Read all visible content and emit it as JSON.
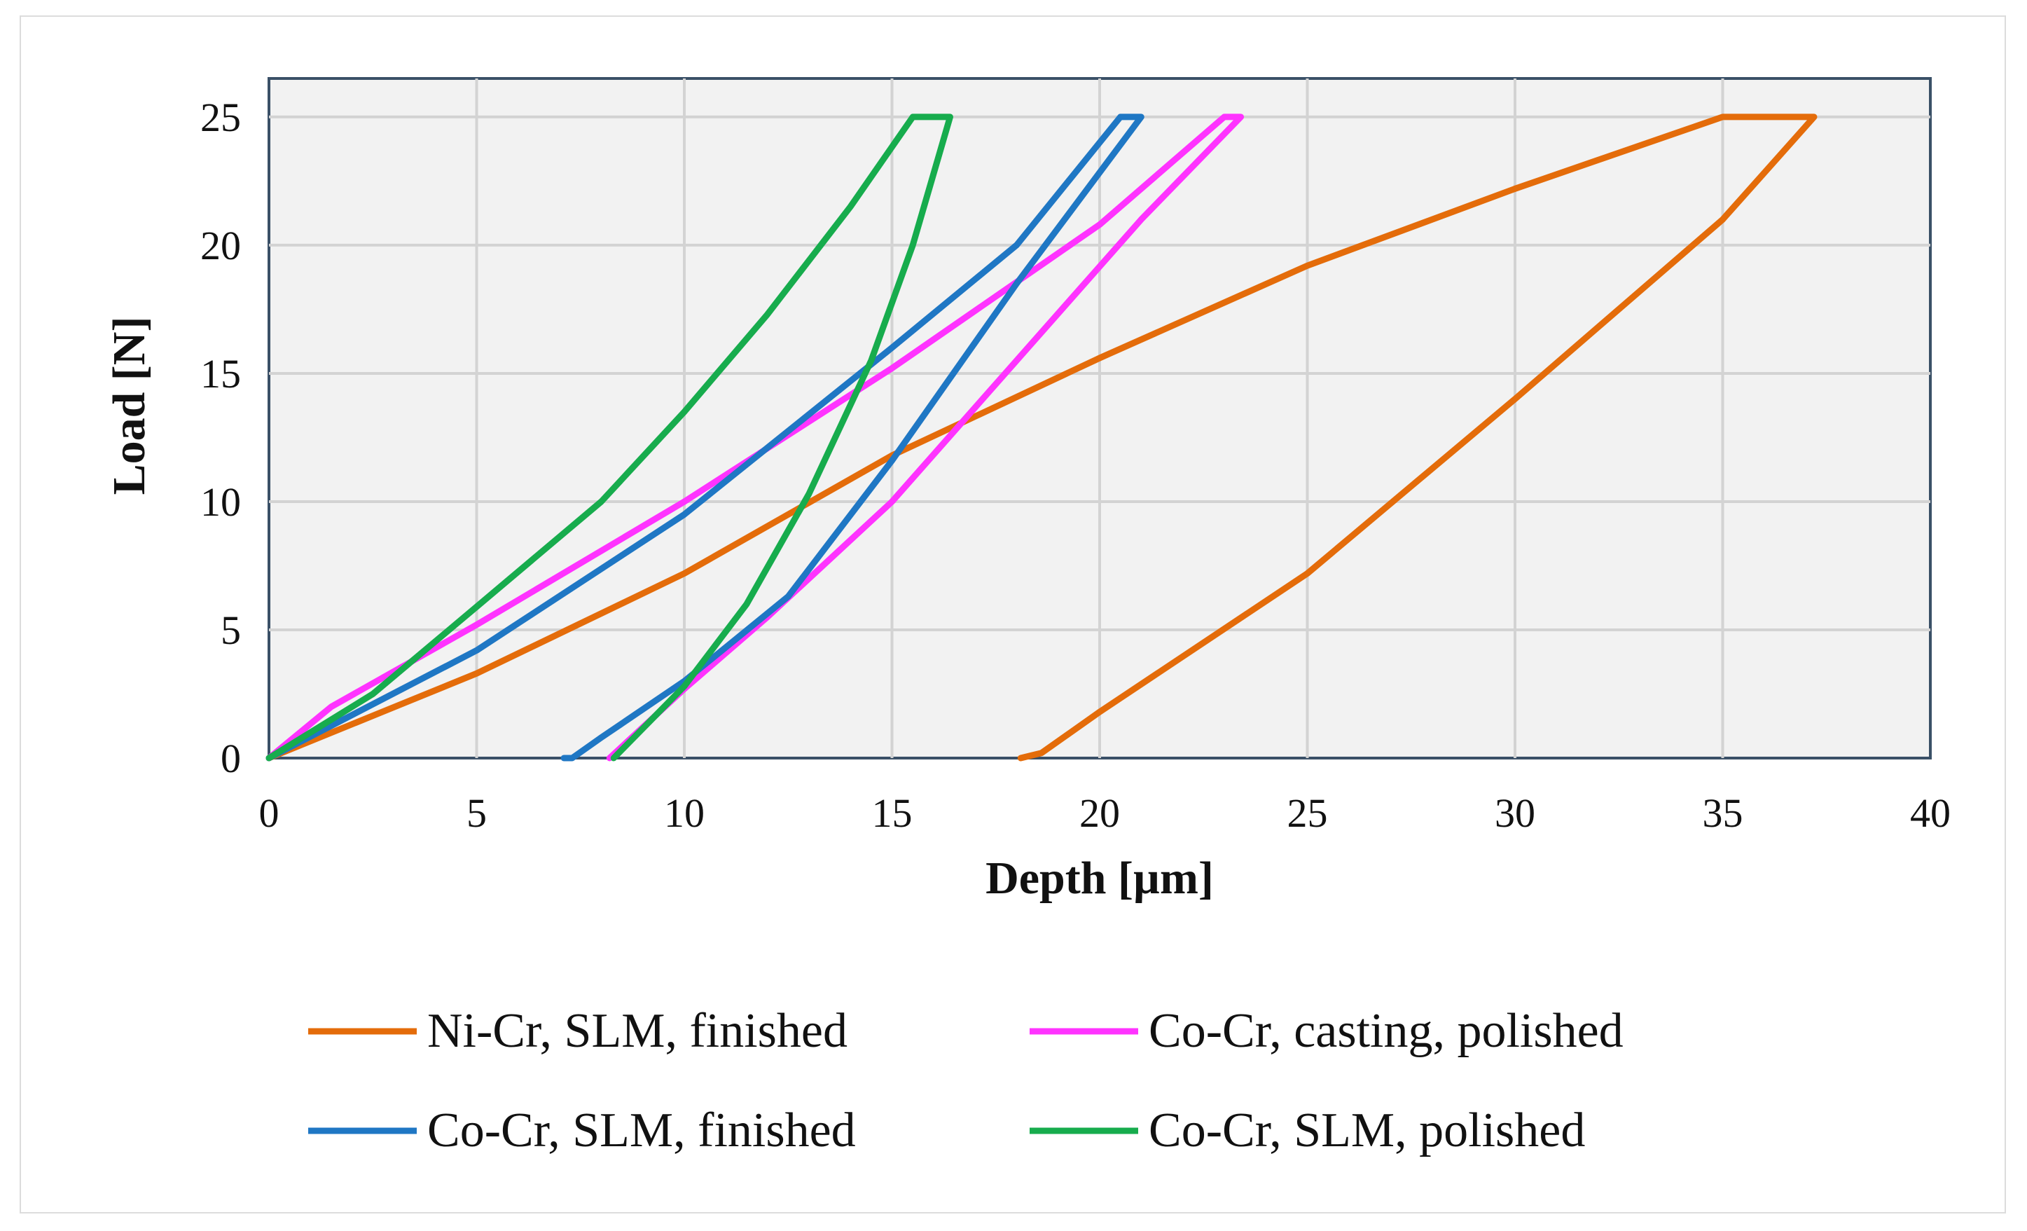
{
  "chart_data": {
    "type": "line",
    "title": "",
    "xlabel": "Depth [µm]",
    "ylabel": "Load [N]",
    "xlim": [
      0,
      40
    ],
    "ylim": [
      0,
      26.5
    ],
    "xticks": [
      0,
      5,
      10,
      15,
      20,
      25,
      30,
      35,
      40
    ],
    "yticks": [
      0,
      5,
      10,
      15,
      20,
      25
    ],
    "grid": true,
    "legend_position": "bottom",
    "series": [
      {
        "name": "Ni-Cr, SLM, finished",
        "color": "#e46c0a",
        "points": [
          [
            0,
            0
          ],
          [
            5,
            3.3
          ],
          [
            10,
            7.2
          ],
          [
            15,
            11.8
          ],
          [
            20,
            15.6
          ],
          [
            25,
            19.2
          ],
          [
            30,
            22.2
          ],
          [
            35,
            25
          ],
          [
            37.2,
            25
          ],
          [
            35,
            21
          ],
          [
            30,
            14
          ],
          [
            25,
            7.2
          ],
          [
            20,
            1.8
          ],
          [
            18.6,
            0.2
          ],
          [
            18.1,
            0
          ]
        ]
      },
      {
        "name": "Co-Cr, casting, polished",
        "color": "#ff33ff",
        "points": [
          [
            0,
            0
          ],
          [
            1.5,
            2
          ],
          [
            5,
            5.2
          ],
          [
            10,
            10
          ],
          [
            15,
            15.2
          ],
          [
            20,
            20.8
          ],
          [
            23,
            25
          ],
          [
            23.4,
            25
          ],
          [
            21,
            21
          ],
          [
            18,
            15.5
          ],
          [
            15,
            10
          ],
          [
            12,
            5.5
          ],
          [
            10,
            2.7
          ],
          [
            8.2,
            0
          ]
        ]
      },
      {
        "name": "Co-Cr, SLM, finished",
        "color": "#1f77c4",
        "points": [
          [
            0,
            0
          ],
          [
            5,
            4.2
          ],
          [
            10,
            9.5
          ],
          [
            15,
            16
          ],
          [
            18,
            20
          ],
          [
            20.5,
            25
          ],
          [
            21,
            25
          ],
          [
            18,
            18.5
          ],
          [
            15,
            11.6
          ],
          [
            12.5,
            6.3
          ],
          [
            10,
            3
          ],
          [
            8,
            0.8
          ],
          [
            7.3,
            0
          ],
          [
            7.1,
            0
          ]
        ]
      },
      {
        "name": "Co-Cr, SLM, polished",
        "color": "#17ac4d",
        "points": [
          [
            0,
            0
          ],
          [
            2.5,
            2.5
          ],
          [
            5,
            5.9
          ],
          [
            8,
            10
          ],
          [
            10,
            13.5
          ],
          [
            12,
            17.3
          ],
          [
            14,
            21.5
          ],
          [
            15.5,
            25
          ],
          [
            16.4,
            25
          ],
          [
            15.5,
            20
          ],
          [
            14.5,
            15.5
          ],
          [
            13,
            10.3
          ],
          [
            11.5,
            6
          ],
          [
            10,
            2.8
          ],
          [
            8.3,
            0
          ]
        ]
      }
    ]
  }
}
